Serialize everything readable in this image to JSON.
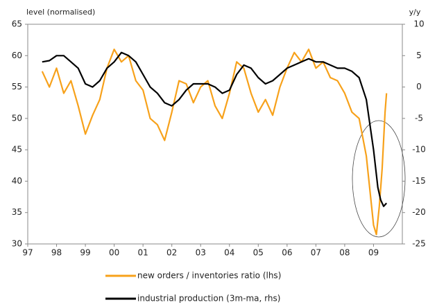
{
  "chart_data": {
    "type": "line",
    "ylabel": "level (normalised)",
    "y2label": "y/y",
    "xlim": [
      1997,
      2010
    ],
    "xticks": [
      {
        "value": 1997,
        "label": "97"
      },
      {
        "value": 1998,
        "label": "98"
      },
      {
        "value": 1999,
        "label": "99"
      },
      {
        "value": 2000,
        "label": "00"
      },
      {
        "value": 2001,
        "label": "01"
      },
      {
        "value": 2002,
        "label": "02"
      },
      {
        "value": 2003,
        "label": "03"
      },
      {
        "value": 2004,
        "label": "04"
      },
      {
        "value": 2005,
        "label": "05"
      },
      {
        "value": 2006,
        "label": "06"
      },
      {
        "value": 2007,
        "label": "07"
      },
      {
        "value": 2008,
        "label": "08"
      },
      {
        "value": 2009,
        "label": "09"
      }
    ],
    "ylim": [
      30,
      65
    ],
    "yticks": [
      30,
      35,
      40,
      45,
      50,
      55,
      60,
      65
    ],
    "y2lim": [
      -25,
      10
    ],
    "y2ticks": [
      -25,
      -20,
      -15,
      -10,
      -5,
      0,
      5,
      10
    ],
    "series": [
      {
        "name": "new orders /  inventories ratio (lhs)",
        "color": "#f7a11a",
        "x": [
          1997.5,
          1997.75,
          1998.0,
          1998.25,
          1998.5,
          1998.75,
          1999.0,
          1999.25,
          1999.5,
          1999.75,
          2000.0,
          2000.25,
          2000.5,
          2000.75,
          2001.0,
          2001.25,
          2001.5,
          2001.75,
          2002.0,
          2002.25,
          2002.5,
          2002.75,
          2003.0,
          2003.25,
          2003.5,
          2003.75,
          2004.0,
          2004.25,
          2004.5,
          2004.75,
          2005.0,
          2005.25,
          2005.5,
          2005.75,
          2006.0,
          2006.25,
          2006.5,
          2006.75,
          2007.0,
          2007.25,
          2007.5,
          2007.75,
          2008.0,
          2008.25,
          2008.5,
          2008.75,
          2009.0,
          2009.1,
          2009.2,
          2009.3,
          2009.4,
          2009.45
        ],
        "values": [
          57.5,
          55,
          58,
          54,
          56,
          52,
          47.5,
          50.5,
          53,
          58,
          61,
          59,
          60,
          56,
          54.5,
          50,
          49,
          46.5,
          51,
          56,
          55.5,
          52.5,
          55,
          56,
          52,
          50,
          54,
          59,
          58,
          54,
          51,
          53,
          50.5,
          55,
          58,
          60.5,
          59,
          61,
          58,
          59,
          56.5,
          56,
          54,
          51,
          50,
          44,
          33,
          31.5,
          36,
          42,
          51,
          54
        ]
      },
      {
        "name": "industrial production (3m-ma, rhs)",
        "color": "#000000",
        "axis": "y2",
        "x": [
          1997.5,
          1997.75,
          1998.0,
          1998.25,
          1998.5,
          1998.75,
          1999.0,
          1999.25,
          1999.5,
          1999.75,
          2000.0,
          2000.25,
          2000.5,
          2000.75,
          2001.0,
          2001.25,
          2001.5,
          2001.75,
          2002.0,
          2002.25,
          2002.5,
          2002.75,
          2003.0,
          2003.25,
          2003.5,
          2003.75,
          2004.0,
          2004.25,
          2004.5,
          2004.75,
          2005.0,
          2005.25,
          2005.5,
          2005.75,
          2006.0,
          2006.25,
          2006.5,
          2006.75,
          2007.0,
          2007.25,
          2007.5,
          2007.75,
          2008.0,
          2008.25,
          2008.5,
          2008.75,
          2009.0,
          2009.15,
          2009.25,
          2009.35,
          2009.45
        ],
        "values": [
          4,
          4.2,
          5,
          5,
          4,
          3,
          0.5,
          0,
          1,
          3,
          4,
          5.5,
          5,
          4,
          2,
          0,
          -1,
          -2.5,
          -3,
          -2,
          -0.5,
          0.5,
          0.5,
          0.5,
          0,
          -1,
          -0.5,
          2,
          3.5,
          3,
          1.5,
          0.5,
          1,
          2,
          3,
          3.5,
          4,
          4.5,
          4,
          4,
          3.5,
          3,
          3,
          2.5,
          1.5,
          -2,
          -10,
          -16,
          -18,
          -19,
          -18.5
        ]
      }
    ]
  }
}
